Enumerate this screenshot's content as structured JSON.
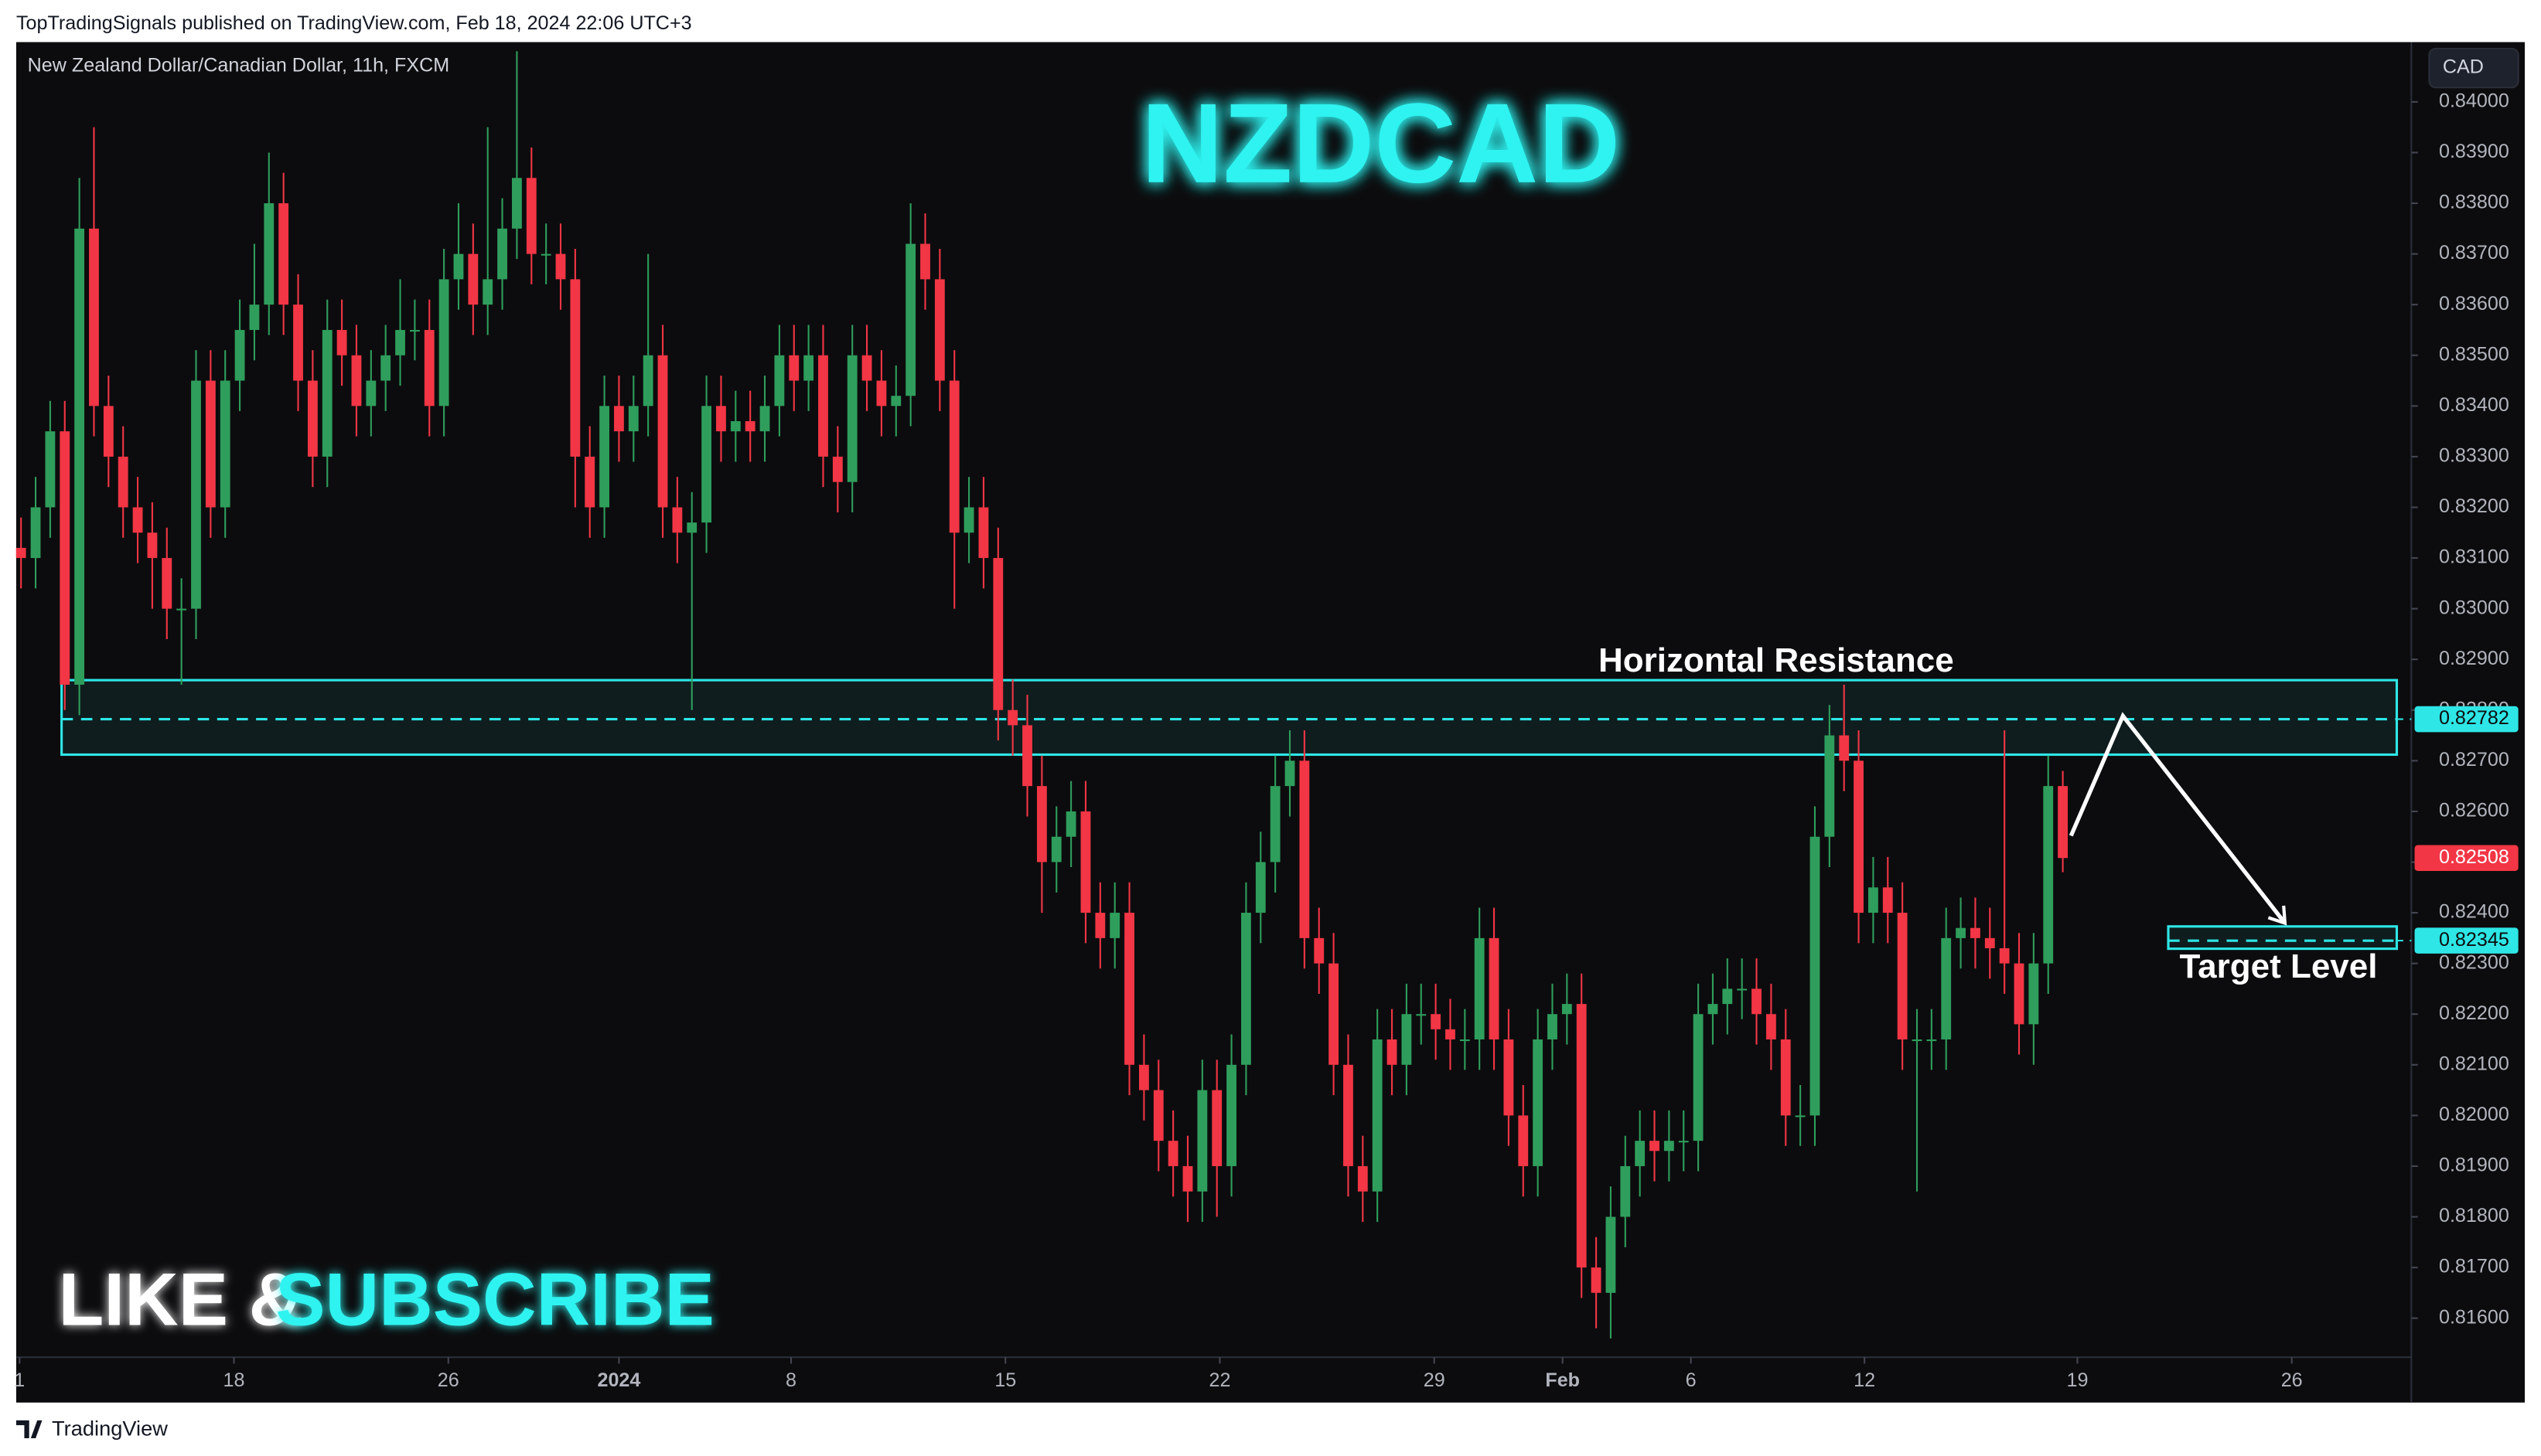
{
  "page": {
    "header": "TopTradingSignals published on TradingView.com, Feb 18, 2024 22:06 UTC+3",
    "footer": "TradingView"
  },
  "chart_data": {
    "type": "candlestick",
    "title": "NZDCAD",
    "subtitle": "New Zealand Dollar/Canadian Dollar, 11h, FXCM",
    "currency": "CAD",
    "promo": [
      "LIKE &",
      "SUBSCRIBE"
    ],
    "up_color": "#2f9e5c",
    "down_color": "#f23645",
    "grid": false,
    "open": [
      0.8312,
      0.831,
      0.832,
      0.8335,
      0.8285,
      0.8375,
      0.834,
      0.833,
      0.832,
      0.8315,
      0.831,
      0.83,
      0.83,
      0.8345,
      0.832,
      0.8345,
      0.8355,
      0.836,
      0.838,
      0.836,
      0.8345,
      0.833,
      0.8355,
      0.835,
      0.834,
      0.8345,
      0.835,
      0.8355,
      0.8355,
      0.834,
      0.8365,
      0.837,
      0.836,
      0.8365,
      0.8375,
      0.8385,
      0.837,
      0.837,
      0.8365,
      0.833,
      0.832,
      0.834,
      0.8335,
      0.834,
      0.835,
      0.832,
      0.8315,
      0.8317,
      0.834,
      0.8335,
      0.8337,
      0.8335,
      0.834,
      0.835,
      0.8345,
      0.835,
      0.833,
      0.8325,
      0.835,
      0.8345,
      0.834,
      0.8342,
      0.8372,
      0.8365,
      0.8345,
      0.8315,
      0.832,
      0.831,
      0.828,
      0.8277,
      0.8265,
      0.825,
      0.8255,
      0.826,
      0.824,
      0.8235,
      0.824,
      0.821,
      0.8205,
      0.8195,
      0.819,
      0.8185,
      0.8205,
      0.819,
      0.821,
      0.824,
      0.825,
      0.8265,
      0.827,
      0.8235,
      0.823,
      0.821,
      0.819,
      0.8185,
      0.8215,
      0.821,
      0.822,
      0.822,
      0.8217,
      0.8215,
      0.8215,
      0.8235,
      0.8215,
      0.82,
      0.819,
      0.8215,
      0.822,
      0.8222,
      0.817,
      0.8165,
      0.818,
      0.819,
      0.8195,
      0.8193,
      0.8195,
      0.8195,
      0.822,
      0.8222,
      0.8225,
      0.8225,
      0.822,
      0.8215,
      0.82,
      0.82,
      0.8255,
      0.8275,
      0.827,
      0.824,
      0.8245,
      0.824,
      0.8215,
      0.8215,
      0.8215,
      0.8235,
      0.8237,
      0.8235,
      0.8233,
      0.823,
      0.8218,
      0.823,
      0.8265
    ],
    "high": [
      0.8318,
      0.8326,
      0.8341,
      0.8341,
      0.8385,
      0.8395,
      0.8346,
      0.8336,
      0.8326,
      0.8321,
      0.8316,
      0.8306,
      0.8351,
      0.8351,
      0.8351,
      0.8361,
      0.8372,
      0.839,
      0.8386,
      0.8366,
      0.8351,
      0.8361,
      0.8361,
      0.8356,
      0.8351,
      0.8356,
      0.8365,
      0.8361,
      0.8361,
      0.8371,
      0.838,
      0.8376,
      0.8395,
      0.8381,
      0.841,
      0.8391,
      0.8376,
      0.8376,
      0.8371,
      0.8336,
      0.8346,
      0.8346,
      0.8346,
      0.837,
      0.8356,
      0.8326,
      0.8323,
      0.8346,
      0.8346,
      0.8343,
      0.8343,
      0.8346,
      0.8356,
      0.8356,
      0.8356,
      0.8356,
      0.8336,
      0.8356,
      0.8356,
      0.8351,
      0.8348,
      0.838,
      0.8378,
      0.8371,
      0.8351,
      0.8326,
      0.8326,
      0.8316,
      0.8286,
      0.8283,
      0.8271,
      0.8261,
      0.8266,
      0.8266,
      0.8246,
      0.8246,
      0.8246,
      0.8216,
      0.8211,
      0.8201,
      0.8196,
      0.8211,
      0.8211,
      0.8216,
      0.8246,
      0.8256,
      0.8271,
      0.8276,
      0.8276,
      0.8241,
      0.8236,
      0.8216,
      0.8196,
      0.8221,
      0.8221,
      0.8226,
      0.8226,
      0.8226,
      0.8223,
      0.8221,
      0.8241,
      0.8241,
      0.8221,
      0.8206,
      0.8221,
      0.8226,
      0.8228,
      0.8228,
      0.8176,
      0.8186,
      0.8196,
      0.8201,
      0.8201,
      0.8201,
      0.8201,
      0.8226,
      0.8228,
      0.8231,
      0.8231,
      0.8231,
      0.8226,
      0.8221,
      0.8206,
      0.8261,
      0.8281,
      0.8285,
      0.8276,
      0.8251,
      0.8251,
      0.8246,
      0.8221,
      0.8221,
      0.8241,
      0.8243,
      0.8243,
      0.8241,
      0.8276,
      0.8236,
      0.8236,
      0.8271,
      0.8268
    ],
    "low": [
      0.8304,
      0.8304,
      0.8314,
      0.828,
      0.8279,
      0.8334,
      0.8324,
      0.8314,
      0.8309,
      0.83,
      0.8294,
      0.8285,
      0.8294,
      0.8314,
      0.8314,
      0.8339,
      0.8349,
      0.8354,
      0.8354,
      0.8339,
      0.8324,
      0.8324,
      0.8344,
      0.8334,
      0.8334,
      0.8339,
      0.8344,
      0.8349,
      0.8334,
      0.8334,
      0.8359,
      0.8354,
      0.8354,
      0.8359,
      0.8369,
      0.8364,
      0.8364,
      0.8359,
      0.832,
      0.8314,
      0.8314,
      0.8329,
      0.8329,
      0.8334,
      0.8314,
      0.8309,
      0.828,
      0.8311,
      0.8329,
      0.8329,
      0.8329,
      0.8329,
      0.8334,
      0.8339,
      0.8339,
      0.8324,
      0.8319,
      0.8319,
      0.8339,
      0.8334,
      0.8334,
      0.8336,
      0.8359,
      0.8339,
      0.83,
      0.8309,
      0.8304,
      0.8274,
      0.8271,
      0.8259,
      0.824,
      0.8244,
      0.8249,
      0.8234,
      0.8229,
      0.8229,
      0.8204,
      0.8199,
      0.8189,
      0.8184,
      0.8179,
      0.8179,
      0.818,
      0.8184,
      0.8204,
      0.8234,
      0.8244,
      0.8259,
      0.8229,
      0.8224,
      0.8204,
      0.8184,
      0.8179,
      0.8179,
      0.8204,
      0.8204,
      0.8214,
      0.8211,
      0.8209,
      0.8209,
      0.8209,
      0.8209,
      0.8194,
      0.8184,
      0.8184,
      0.8209,
      0.8214,
      0.8164,
      0.8158,
      0.8156,
      0.8174,
      0.8184,
      0.8187,
      0.8187,
      0.8189,
      0.8189,
      0.8214,
      0.8216,
      0.8219,
      0.8214,
      0.8209,
      0.8194,
      0.8194,
      0.8194,
      0.8249,
      0.8264,
      0.8234,
      0.8234,
      0.8234,
      0.8209,
      0.8185,
      0.8209,
      0.8209,
      0.8229,
      0.8229,
      0.8227,
      0.8224,
      0.8212,
      0.821,
      0.8224,
      0.8248
    ],
    "close": [
      0.831,
      0.832,
      0.8335,
      0.8285,
      0.8375,
      0.834,
      0.833,
      0.832,
      0.8315,
      0.831,
      0.83,
      0.83,
      0.8345,
      0.832,
      0.8345,
      0.8355,
      0.836,
      0.838,
      0.836,
      0.8345,
      0.833,
      0.8355,
      0.835,
      0.834,
      0.8345,
      0.835,
      0.8355,
      0.8355,
      0.834,
      0.8365,
      0.837,
      0.836,
      0.8365,
      0.8375,
      0.8385,
      0.837,
      0.837,
      0.8365,
      0.833,
      0.832,
      0.834,
      0.8335,
      0.834,
      0.835,
      0.832,
      0.8315,
      0.8317,
      0.834,
      0.8335,
      0.8337,
      0.8335,
      0.834,
      0.835,
      0.8345,
      0.835,
      0.833,
      0.8325,
      0.835,
      0.8345,
      0.834,
      0.8342,
      0.8372,
      0.8365,
      0.8345,
      0.8315,
      0.832,
      0.831,
      0.828,
      0.8277,
      0.8265,
      0.825,
      0.8255,
      0.826,
      0.824,
      0.8235,
      0.824,
      0.821,
      0.8205,
      0.8195,
      0.819,
      0.8185,
      0.8205,
      0.819,
      0.821,
      0.824,
      0.825,
      0.8265,
      0.827,
      0.8235,
      0.823,
      0.821,
      0.819,
      0.8185,
      0.8215,
      0.821,
      0.822,
      0.822,
      0.8217,
      0.8215,
      0.8215,
      0.8235,
      0.8215,
      0.82,
      0.819,
      0.8215,
      0.822,
      0.8222,
      0.817,
      0.8165,
      0.818,
      0.819,
      0.8195,
      0.8193,
      0.8195,
      0.8195,
      0.822,
      0.8222,
      0.8225,
      0.8225,
      0.822,
      0.8215,
      0.82,
      0.82,
      0.8255,
      0.8275,
      0.827,
      0.824,
      0.8245,
      0.824,
      0.8215,
      0.8215,
      0.8215,
      0.8235,
      0.8237,
      0.8235,
      0.8233,
      0.823,
      0.8218,
      0.823,
      0.8265,
      0.82508
    ],
    "xlim": [
      -0.33,
      163.9
    ],
    "xticks": [
      {
        "value": -0.1,
        "label": "1"
      },
      {
        "value": 14.6,
        "label": "18"
      },
      {
        "value": 29.3,
        "label": "26"
      },
      {
        "value": 41.0,
        "label": "2024"
      },
      {
        "value": 52.8,
        "label": "8"
      },
      {
        "value": 67.5,
        "label": "15"
      },
      {
        "value": 82.2,
        "label": "22"
      },
      {
        "value": 96.9,
        "label": "29"
      },
      {
        "value": 105.7,
        "label": "Feb"
      },
      {
        "value": 114.5,
        "label": "6"
      },
      {
        "value": 126.4,
        "label": "12"
      },
      {
        "value": 141.0,
        "label": "19"
      },
      {
        "value": 155.7,
        "label": "26"
      }
    ],
    "ylim": [
      0.81523,
      0.84118
    ],
    "yticks": [
      {
        "value": 0.816,
        "label": "0.81600"
      },
      {
        "value": 0.817,
        "label": "0.81700"
      },
      {
        "value": 0.818,
        "label": "0.81800"
      },
      {
        "value": 0.819,
        "label": "0.81900"
      },
      {
        "value": 0.82,
        "label": "0.82000"
      },
      {
        "value": 0.821,
        "label": "0.82100"
      },
      {
        "value": 0.822,
        "label": "0.82200"
      },
      {
        "value": 0.823,
        "label": "0.82300"
      },
      {
        "value": 0.824,
        "label": "0.82400"
      },
      {
        "value": 0.825,
        "label": "0.82500"
      },
      {
        "value": 0.826,
        "label": "0.82600"
      },
      {
        "value": 0.827,
        "label": "0.82700"
      },
      {
        "value": 0.828,
        "label": "0.82800"
      },
      {
        "value": 0.829,
        "label": "0.82900"
      },
      {
        "value": 0.83,
        "label": "0.83000"
      },
      {
        "value": 0.831,
        "label": "0.83100"
      },
      {
        "value": 0.832,
        "label": "0.83200"
      },
      {
        "value": 0.833,
        "label": "0.83300"
      },
      {
        "value": 0.834,
        "label": "0.83400"
      },
      {
        "value": 0.835,
        "label": "0.83500"
      },
      {
        "value": 0.836,
        "label": "0.83600"
      },
      {
        "value": 0.837,
        "label": "0.83700"
      },
      {
        "value": 0.838,
        "label": "0.83800"
      },
      {
        "value": 0.839,
        "label": "0.83900"
      },
      {
        "value": 0.84,
        "label": "0.84000"
      }
    ],
    "annotations": {
      "resistance": {
        "label": "Horizontal Resistance",
        "top": 0.82859,
        "bottom": 0.82712,
        "level": 0.82782,
        "color": "#2ee6e6"
      },
      "target": {
        "label": "Target Level",
        "top": 0.82373,
        "bottom": 0.82329,
        "level": 0.82345,
        "color": "#2ee6e6"
      }
    }
  }
}
